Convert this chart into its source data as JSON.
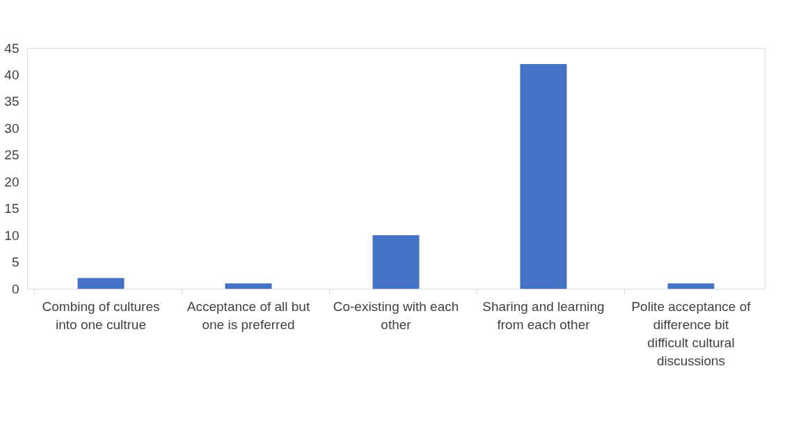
{
  "chart_data": {
    "type": "bar",
    "categories": [
      "Combing of cultures into one cultrue",
      "Acceptance of all but one is preferred",
      "Co-existing with each other",
      "Sharing and learning from each other",
      "Polite acceptance of difference bit difficult cultural discussions"
    ],
    "values": [
      2,
      1,
      10,
      42,
      1
    ],
    "color": "#4472c4",
    "ylim": [
      0,
      45
    ],
    "yticks": [
      0,
      5,
      10,
      15,
      20,
      25,
      30,
      35,
      40,
      45
    ],
    "grid": false
  }
}
